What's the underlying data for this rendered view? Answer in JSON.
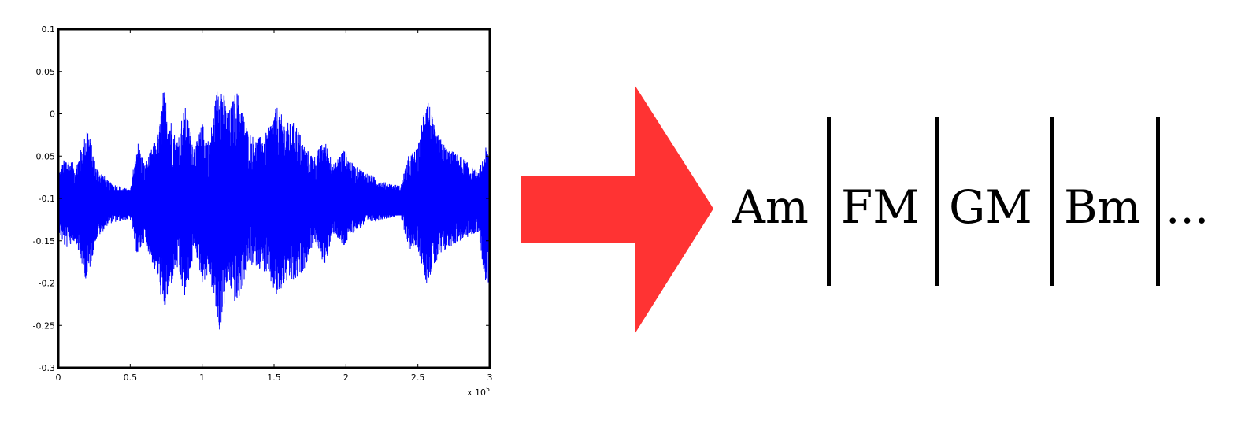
{
  "waveform_plot": {
    "y_ticks": [
      "0.1",
      "0.05",
      "0",
      "-0.05",
      "-0.1",
      "-0.15",
      "-0.2",
      "-0.25",
      "-0.3"
    ],
    "x_ticks": [
      "0",
      "0.5",
      "1",
      "1.5",
      "2",
      "2.5",
      "3"
    ],
    "x_exponent": "x 10",
    "x_exponent_power": "5",
    "colors": {
      "waveform": "#0000ff",
      "axes": "#000000"
    }
  },
  "chart_data": {
    "type": "line",
    "xlim": [
      0,
      300000
    ],
    "ylim": [
      -0.3,
      0.1
    ],
    "y_ticks": [
      0.1,
      0.05,
      0,
      -0.05,
      -0.1,
      -0.15,
      -0.2,
      -0.25,
      -0.3
    ],
    "x_ticks": [
      0,
      50000,
      100000,
      150000,
      200000,
      250000,
      300000
    ],
    "grid": false,
    "series": [
      {
        "values": "audio waveform samples centered near -0.105; envelope peaks: 0.05 (max) and -0.26 (min) near x=110000"
      }
    ],
    "envelope": [
      {
        "x": 0,
        "top": -0.07,
        "bottom": -0.14
      },
      {
        "x": 5000,
        "top": -0.05,
        "bottom": -0.16
      },
      {
        "x": 12000,
        "top": -0.06,
        "bottom": -0.15
      },
      {
        "x": 18000,
        "top": -0.03,
        "bottom": -0.19
      },
      {
        "x": 20000,
        "top": -0.01,
        "bottom": -0.2
      },
      {
        "x": 26000,
        "top": -0.06,
        "bottom": -0.15
      },
      {
        "x": 35000,
        "top": -0.08,
        "bottom": -0.13
      },
      {
        "x": 50000,
        "top": -0.09,
        "bottom": -0.125
      },
      {
        "x": 55000,
        "top": -0.03,
        "bottom": -0.17
      },
      {
        "x": 60000,
        "top": -0.06,
        "bottom": -0.15
      },
      {
        "x": 70000,
        "top": -0.02,
        "bottom": -0.2
      },
      {
        "x": 73000,
        "top": 0.03,
        "bottom": -0.24
      },
      {
        "x": 76000,
        "top": 0.01,
        "bottom": -0.22
      },
      {
        "x": 82000,
        "top": -0.03,
        "bottom": -0.18
      },
      {
        "x": 88000,
        "top": 0.01,
        "bottom": -0.22
      },
      {
        "x": 95000,
        "top": -0.04,
        "bottom": -0.16
      },
      {
        "x": 100000,
        "top": -0.01,
        "bottom": -0.2
      },
      {
        "x": 105000,
        "top": -0.03,
        "bottom": -0.19
      },
      {
        "x": 112000,
        "top": 0.05,
        "bottom": -0.26
      },
      {
        "x": 118000,
        "top": 0.0,
        "bottom": -0.2
      },
      {
        "x": 124000,
        "top": 0.03,
        "bottom": -0.23
      },
      {
        "x": 132000,
        "top": -0.02,
        "bottom": -0.18
      },
      {
        "x": 138000,
        "top": -0.03,
        "bottom": -0.18
      },
      {
        "x": 145000,
        "top": -0.02,
        "bottom": -0.19
      },
      {
        "x": 152000,
        "top": 0.01,
        "bottom": -0.22
      },
      {
        "x": 158000,
        "top": -0.01,
        "bottom": -0.2
      },
      {
        "x": 165000,
        "top": -0.01,
        "bottom": -0.2
      },
      {
        "x": 172000,
        "top": -0.04,
        "bottom": -0.18
      },
      {
        "x": 178000,
        "top": -0.05,
        "bottom": -0.15
      },
      {
        "x": 185000,
        "top": -0.03,
        "bottom": -0.18
      },
      {
        "x": 192000,
        "top": -0.06,
        "bottom": -0.14
      },
      {
        "x": 198000,
        "top": -0.04,
        "bottom": -0.16
      },
      {
        "x": 205000,
        "top": -0.06,
        "bottom": -0.14
      },
      {
        "x": 215000,
        "top": -0.07,
        "bottom": -0.13
      },
      {
        "x": 225000,
        "top": -0.08,
        "bottom": -0.125
      },
      {
        "x": 238000,
        "top": -0.085,
        "bottom": -0.12
      },
      {
        "x": 243000,
        "top": -0.05,
        "bottom": -0.16
      },
      {
        "x": 250000,
        "top": -0.04,
        "bottom": -0.16
      },
      {
        "x": 256000,
        "top": 0.03,
        "bottom": -0.2
      },
      {
        "x": 262000,
        "top": -0.02,
        "bottom": -0.18
      },
      {
        "x": 270000,
        "top": -0.04,
        "bottom": -0.16
      },
      {
        "x": 280000,
        "top": -0.05,
        "bottom": -0.15
      },
      {
        "x": 292000,
        "top": -0.07,
        "bottom": -0.14
      },
      {
        "x": 297000,
        "top": -0.04,
        "bottom": -0.2
      },
      {
        "x": 300000,
        "top": -0.04,
        "bottom": -0.2
      }
    ]
  },
  "arrow": {
    "color": "#ff3333"
  },
  "chords": [
    "Am",
    "FM",
    "GM",
    "Bm",
    "..."
  ]
}
